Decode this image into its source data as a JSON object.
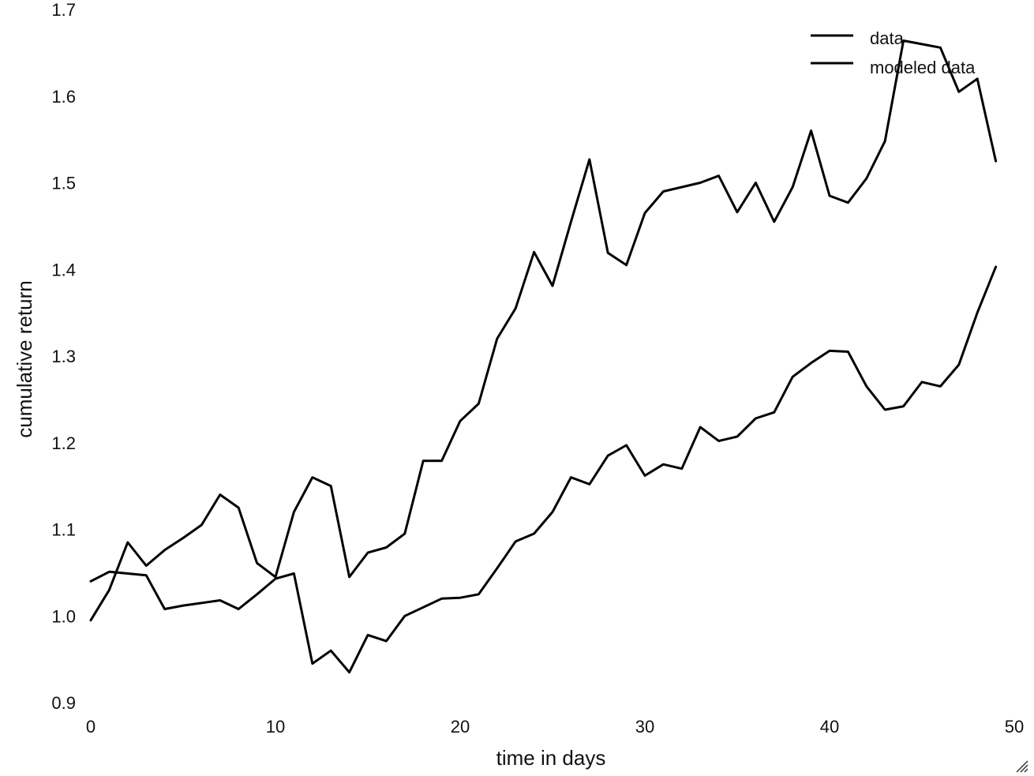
{
  "chart_data": {
    "type": "line",
    "xlabel": "time in days",
    "ylabel": "cumulative return",
    "xlim": [
      0,
      50
    ],
    "ylim": [
      0.9,
      1.7
    ],
    "x_ticks": [
      "0",
      "10",
      "20",
      "30",
      "40",
      "50"
    ],
    "y_ticks": [
      "0.9",
      "1.0",
      "1.1",
      "1.2",
      "1.3",
      "1.4",
      "1.5",
      "1.6",
      "1.7"
    ],
    "grid": false,
    "legend_position": "top-right",
    "x": [
      0,
      1,
      2,
      3,
      4,
      5,
      6,
      7,
      8,
      9,
      10,
      11,
      12,
      13,
      14,
      15,
      16,
      17,
      18,
      19,
      20,
      21,
      22,
      23,
      24,
      25,
      26,
      27,
      28,
      29,
      30,
      31,
      32,
      33,
      34,
      35,
      36,
      37,
      38,
      39,
      40,
      41,
      42,
      43,
      44,
      45,
      46,
      47,
      48,
      49
    ],
    "series": [
      {
        "name": "data",
        "color": "#000000",
        "values": [
          0.995,
          1.03,
          1.085,
          1.058,
          1.076,
          1.09,
          1.105,
          1.14,
          1.125,
          1.061,
          1.045,
          1.12,
          1.16,
          1.15,
          1.045,
          1.073,
          1.079,
          1.095,
          1.179,
          1.179,
          1.225,
          1.245,
          1.32,
          1.355,
          1.42,
          1.381,
          1.455,
          1.527,
          1.419,
          1.405,
          1.465,
          1.49,
          1.495,
          1.5,
          1.508,
          1.466,
          1.5,
          1.455,
          1.495,
          1.56,
          1.485,
          1.477,
          1.505,
          1.548,
          1.664,
          1.66,
          1.656,
          1.605,
          1.62,
          1.525
        ]
      },
      {
        "name": "modeled data",
        "color": "#000000",
        "values": [
          1.04,
          1.051,
          1.049,
          1.047,
          1.008,
          1.012,
          1.015,
          1.018,
          1.008,
          1.025,
          1.043,
          1.049,
          0.945,
          0.96,
          0.935,
          0.978,
          0.971,
          1.0,
          1.01,
          1.02,
          1.021,
          1.025,
          1.055,
          1.086,
          1.095,
          1.12,
          1.16,
          1.152,
          1.185,
          1.197,
          1.162,
          1.175,
          1.17,
          1.218,
          1.202,
          1.207,
          1.228,
          1.235,
          1.276,
          1.292,
          1.306,
          1.305,
          1.265,
          1.238,
          1.242,
          1.27,
          1.265,
          1.29,
          1.35,
          1.403
        ]
      }
    ]
  }
}
